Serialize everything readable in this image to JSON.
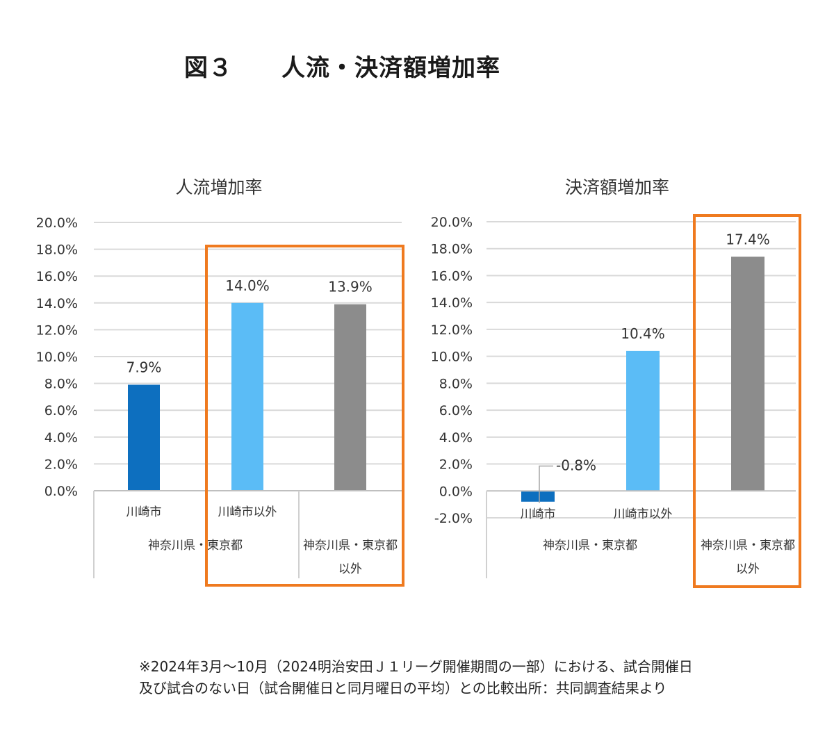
{
  "figure_title": "図３　　人流・決済額増加率",
  "highlight_color": "#ef7a1f",
  "grid_color": "#d9d9d9",
  "chart_data": [
    {
      "type": "bar",
      "title": "人流増加率",
      "ylim": [
        0,
        20
      ],
      "yticks": [
        "20.0%",
        "18.0%",
        "16.0%",
        "14.0%",
        "12.0%",
        "10.0%",
        "8.0%",
        "6.0%",
        "4.0%",
        "2.0%",
        "0.0%"
      ],
      "categories": [
        "川崎市",
        "川崎市以外",
        ""
      ],
      "groups": [
        {
          "label": "神奈川県・東京都",
          "span": [
            0,
            1
          ]
        },
        {
          "label": "神奈川県・東京都\n以外",
          "span": [
            2,
            2
          ]
        }
      ],
      "values": [
        7.9,
        14.0,
        13.9
      ],
      "value_labels": [
        "7.9%",
        "14.0%",
        "13.9%"
      ],
      "colors": [
        "#0d6fbf",
        "#5bbcf6",
        "#8c8c8c"
      ],
      "grid": true,
      "highlight": [
        1,
        2
      ]
    },
    {
      "type": "bar",
      "title": "決済額増加率",
      "ylim": [
        -2,
        20
      ],
      "yticks": [
        "20.0%",
        "18.0%",
        "16.0%",
        "14.0%",
        "12.0%",
        "10.0%",
        "8.0%",
        "6.0%",
        "4.0%",
        "2.0%",
        "0.0%",
        "-2.0%"
      ],
      "categories": [
        "川崎市",
        "川崎市以外",
        ""
      ],
      "groups": [
        {
          "label": "神奈川県・東京都",
          "span": [
            0,
            1
          ]
        },
        {
          "label": "神奈川県・東京都\n以外",
          "span": [
            2,
            2
          ]
        }
      ],
      "values": [
        -0.8,
        10.4,
        17.4
      ],
      "value_labels": [
        "-0.8%",
        "10.4%",
        "17.4%"
      ],
      "colors": [
        "#0d6fbf",
        "#5bbcf6",
        "#8c8c8c"
      ],
      "grid": true,
      "highlight": [
        2,
        2
      ]
    }
  ],
  "footnote": [
    "※2024年3月～10月（2024明治安田Ｊ１リーグ開催期間の一部）における、試合開催日",
    "及び試合のない日（試合開催日と同月曜日の平均）との比較出所：共同調査結果より"
  ]
}
